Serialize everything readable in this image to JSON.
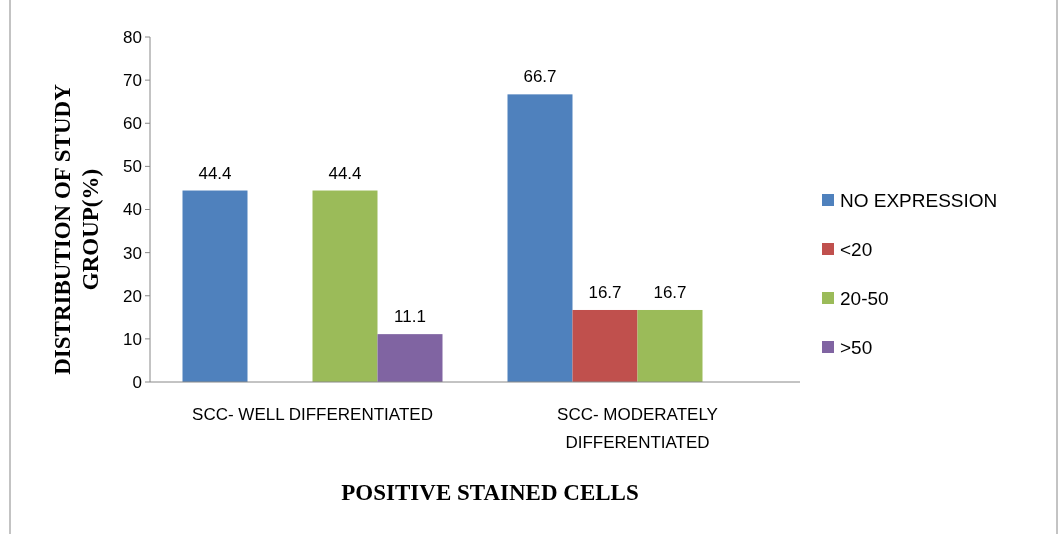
{
  "chart_data": {
    "type": "bar",
    "xlabel": "POSITIVE STAINED CELLS",
    "ylabel": "DISTRIBUTION OF STUDY GROUP(%)",
    "categories": [
      "SCC- WELL DIFFERENTIATED",
      "SCC- MODERATELY DIFFERENTIATED"
    ],
    "series": [
      {
        "name": "NO EXPRESSION",
        "color": "#4f81bd",
        "values": [
          44.4,
          66.7
        ]
      },
      {
        "name": "<20",
        "color": "#c0504d",
        "values": [
          null,
          16.7
        ]
      },
      {
        "name": "20-50",
        "color": "#9bbb59",
        "values": [
          44.4,
          16.7
        ]
      },
      {
        "name": ">50",
        "color": "#8064a2",
        "values": [
          11.1,
          null
        ]
      }
    ],
    "ylim": [
      0,
      80
    ],
    "yticks": [
      0,
      10,
      20,
      30,
      40,
      50,
      60,
      70,
      80
    ],
    "data_labels": true,
    "legend": "right",
    "grid": false
  }
}
